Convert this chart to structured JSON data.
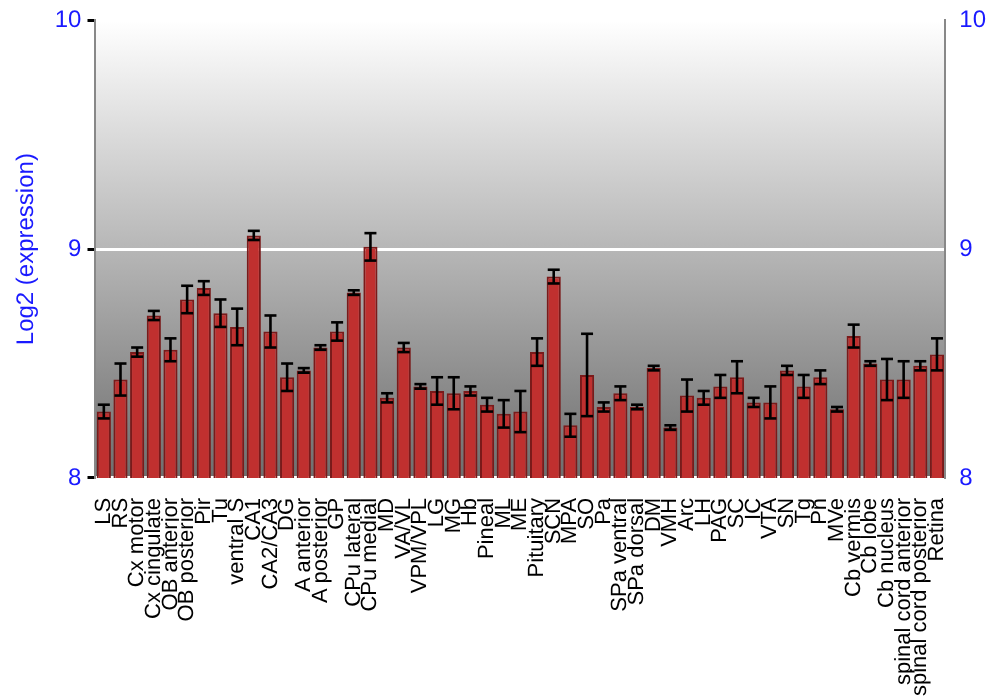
{
  "chart_data": {
    "type": "bar",
    "ylabel": "Log2 (expression)",
    "categories": [
      "LS",
      "RS",
      "Cx motor",
      "Cx cingulate",
      "OB anterior",
      "OB posterior",
      "Pir",
      "Tu",
      "ventral S",
      "CA1",
      "CA2/CA3",
      "DG",
      "A anterior",
      "A posterior",
      "GP",
      "CPu lateral",
      "CPu medial",
      "MD",
      "VA/VL",
      "VPM/VPL",
      "LG",
      "MG",
      "Hb",
      "Pineal",
      "ML",
      "ME",
      "Pituitary",
      "SCN",
      "MPA",
      "SO",
      "Pa",
      "SPa ventral",
      "SPa dorsal",
      "DM",
      "VMH",
      "Arc",
      "LH",
      "PAG",
      "SC",
      "IC",
      "VTA",
      "SN",
      "Tg",
      "Pn",
      "MVe",
      "Cb vermis",
      "Cb lobe",
      "Cb nucleus",
      "spinal cord anterior",
      "spinal cord posterior",
      "Retina"
    ],
    "values": [
      8.29,
      8.43,
      8.55,
      8.71,
      8.56,
      8.78,
      8.83,
      8.72,
      8.66,
      9.06,
      8.64,
      8.44,
      8.47,
      8.57,
      8.64,
      8.81,
      9.01,
      8.35,
      8.57,
      8.4,
      8.38,
      8.37,
      8.38,
      8.32,
      8.28,
      8.29,
      8.55,
      8.88,
      8.23,
      8.45,
      8.31,
      8.37,
      8.31,
      8.48,
      8.22,
      8.36,
      8.35,
      8.4,
      8.44,
      8.33,
      8.33,
      8.47,
      8.4,
      8.44,
      8.3,
      8.62,
      8.5,
      8.43,
      8.43,
      8.49,
      8.54
    ],
    "errors": [
      0.03,
      0.07,
      0.02,
      0.02,
      0.05,
      0.06,
      0.03,
      0.06,
      0.08,
      0.02,
      0.07,
      0.06,
      0.01,
      0.01,
      0.04,
      0.01,
      0.06,
      0.02,
      0.02,
      0.01,
      0.06,
      0.07,
      0.02,
      0.03,
      0.06,
      0.09,
      0.06,
      0.03,
      0.05,
      0.18,
      0.02,
      0.03,
      0.01,
      0.01,
      0.01,
      0.07,
      0.03,
      0.05,
      0.07,
      0.02,
      0.07,
      0.02,
      0.05,
      0.03,
      0.01,
      0.05,
      0.01,
      0.09,
      0.08,
      0.02,
      0.07
    ],
    "color": "#c0302f",
    "ylim": [
      8,
      10
    ],
    "yticks": [
      8,
      9,
      10
    ],
    "y2lim": [
      8,
      10
    ],
    "y2ticks": [
      8,
      9,
      10
    ],
    "grid": "y",
    "legend": false
  }
}
